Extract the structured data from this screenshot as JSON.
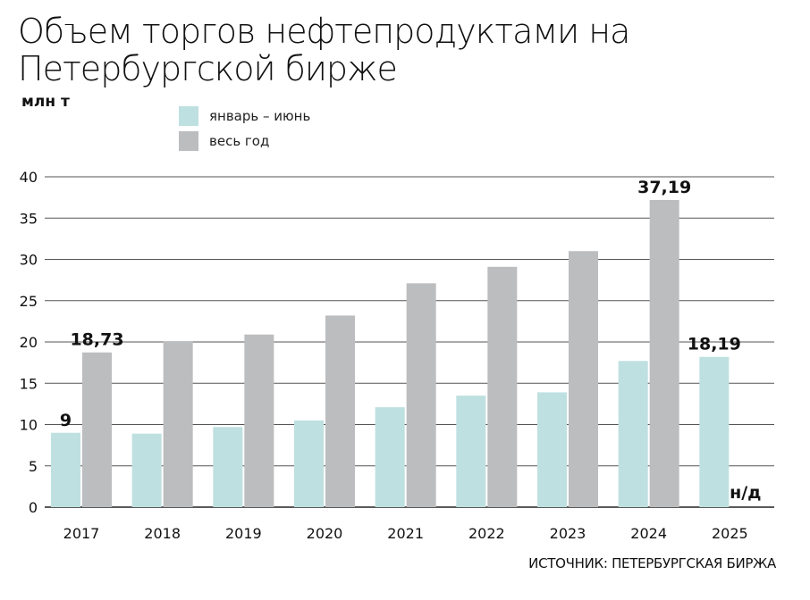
{
  "chart_data": {
    "type": "bar",
    "title": "Объем торгов нефтепродуктами на Петербургской бирже",
    "unit_label": "млн т",
    "source": "ИСТОЧНИК: ПЕТЕРБУРГСКАЯ БИРЖА",
    "categories": [
      "2017",
      "2018",
      "2019",
      "2020",
      "2021",
      "2022",
      "2023",
      "2024",
      "2025"
    ],
    "ylim": [
      0,
      40
    ],
    "yticks": [
      "0",
      "5",
      "10",
      "15",
      "20",
      "25",
      "30",
      "35",
      "40"
    ],
    "grid": true,
    "legend_position": "top-left",
    "series": [
      {
        "name": "январь – июнь",
        "color": "#bfe0e0",
        "values": [
          9,
          8.9,
          9.7,
          10.5,
          12.1,
          13.5,
          13.9,
          17.7,
          18.19
        ]
      },
      {
        "name": "весь год",
        "color": "#bcbdbf",
        "values": [
          18.73,
          20.1,
          20.9,
          23.2,
          27.1,
          29.1,
          31.0,
          37.19,
          null
        ]
      }
    ],
    "data_labels": [
      {
        "series": 0,
        "index": 0,
        "text": "9"
      },
      {
        "series": 1,
        "index": 0,
        "text": "18,73"
      },
      {
        "series": 1,
        "index": 7,
        "text": "37,19"
      },
      {
        "series": 0,
        "index": 8,
        "text": "18,19"
      },
      {
        "series": 1,
        "index": 8,
        "text": "н/д"
      }
    ]
  }
}
